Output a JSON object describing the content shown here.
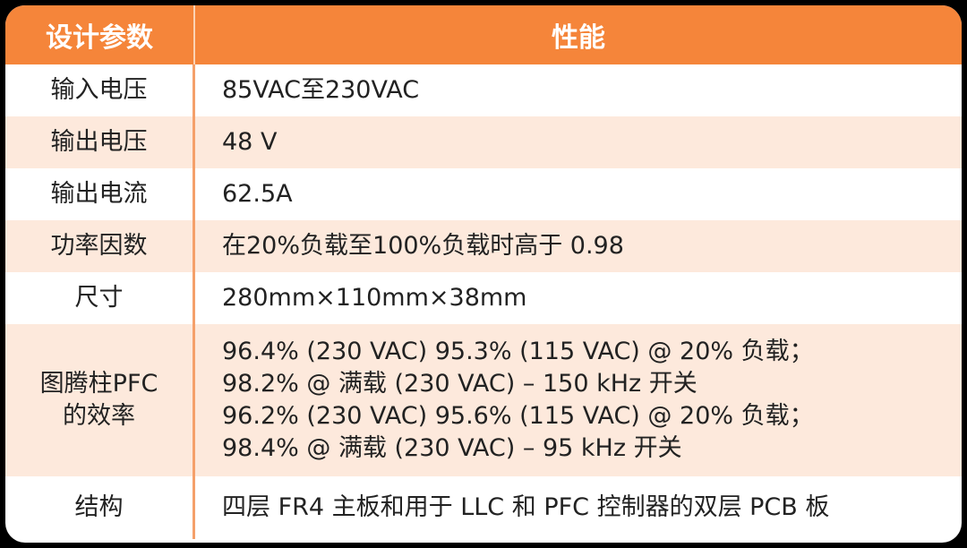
{
  "table": {
    "header": [
      "设计参数",
      "性能"
    ],
    "rows": [
      [
        [
          "输入电压"
        ],
        [
          "85VAC至230VAC"
        ]
      ],
      [
        [
          "输出电压"
        ],
        [
          "48 V"
        ]
      ],
      [
        [
          "输出电流"
        ],
        [
          "62.5A"
        ]
      ],
      [
        [
          "功率因数"
        ],
        [
          "在20%负载至100%负载时高于 0.98"
        ]
      ],
      [
        [
          "尺寸"
        ],
        [
          "280mm×110mm×38mm"
        ]
      ],
      [
        [
          "图腾柱PFC",
          "的效率"
        ],
        [
          "96.4% (230 VAC) 95.3% (115 VAC) @ 20% 负载；",
          "98.2% @ 满载 (230 VAC) – 150 kHz 开关",
          "96.2% (230 VAC) 95.6% (115 VAC) @ 20% 负载；",
          "98.4% @ 满载 (230 VAC) – 95 kHz 开关"
        ]
      ],
      [
        [
          "结构"
        ],
        [
          "四层 FR4 主板和用于 LLC 和 PFC 控制器的双层 PCB 板"
        ]
      ]
    ]
  }
}
